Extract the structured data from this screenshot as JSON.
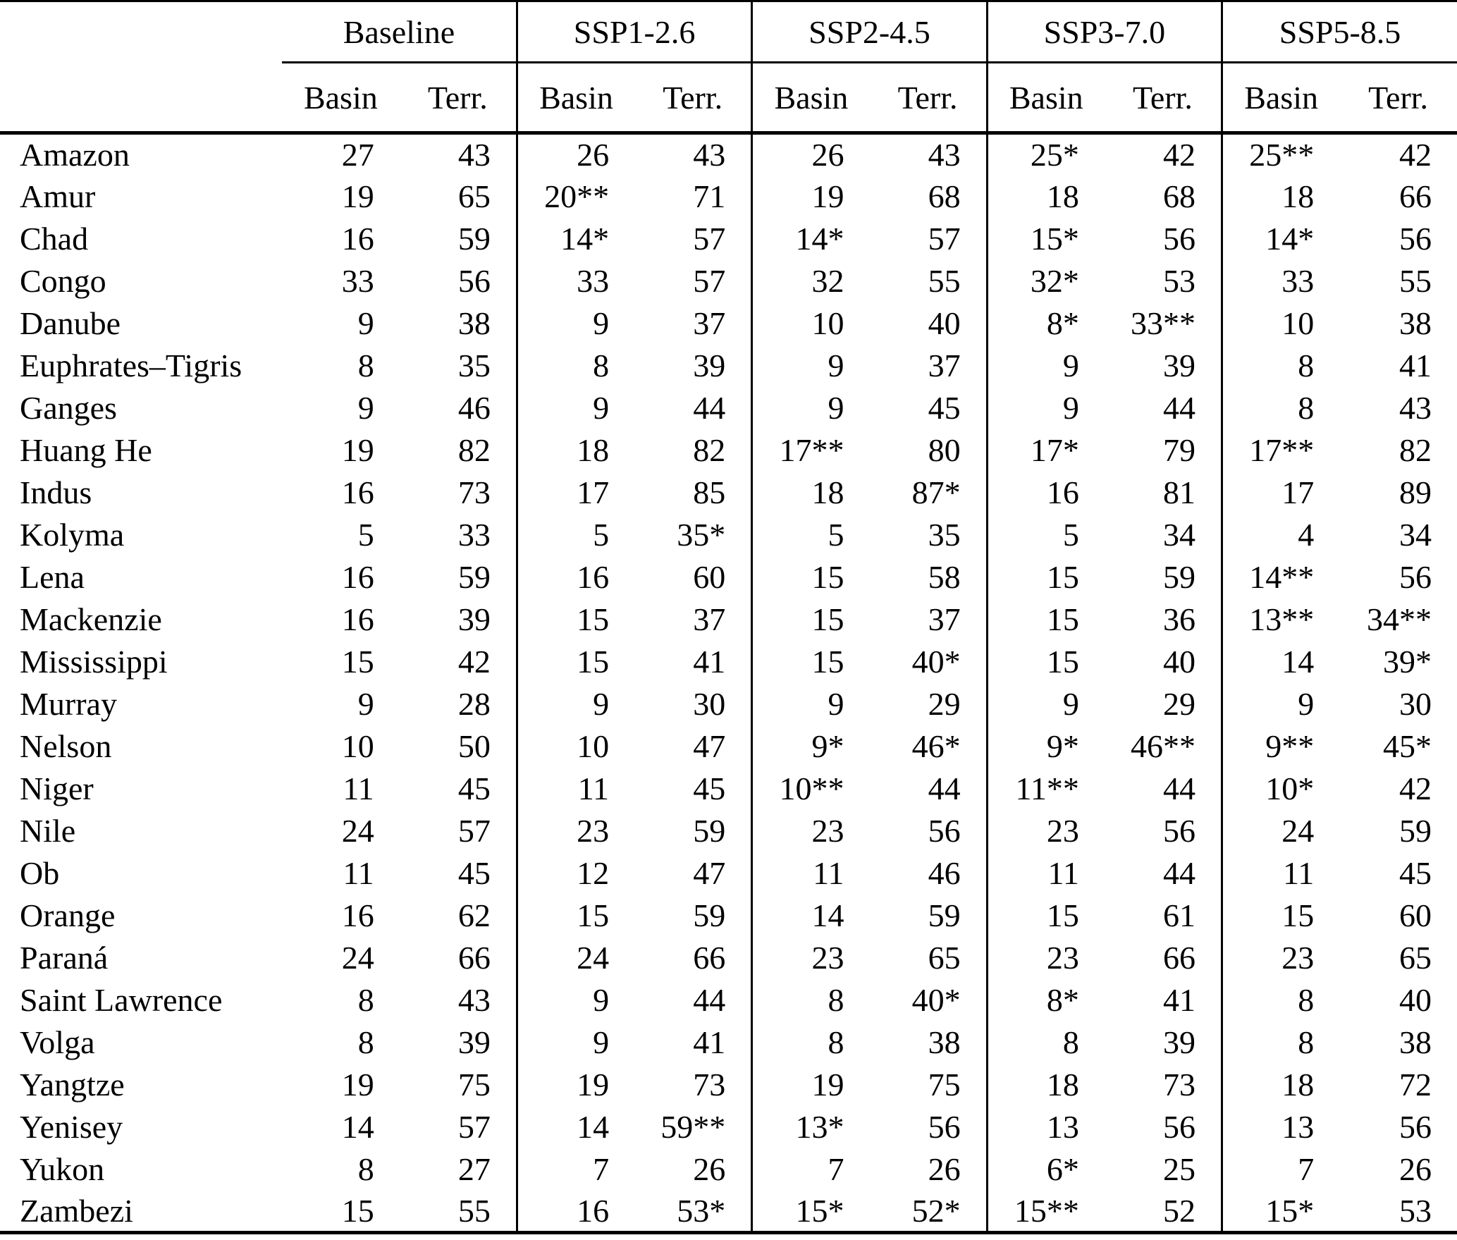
{
  "table": {
    "groups": [
      {
        "label": "Baseline"
      },
      {
        "label": "SSP1-2.6"
      },
      {
        "label": "SSP2-4.5"
      },
      {
        "label": "SSP3-7.0"
      },
      {
        "label": "SSP5-8.5"
      }
    ],
    "subheaders": {
      "basin": "Basin",
      "terr": "Terr."
    },
    "rows": [
      {
        "name": "Amazon",
        "values": [
          "27",
          "43",
          "26",
          "43",
          "26",
          "43",
          "25*",
          "42",
          "25**",
          "42"
        ]
      },
      {
        "name": "Amur",
        "values": [
          "19",
          "65",
          "20**",
          "71",
          "19",
          "68",
          "18",
          "68",
          "18",
          "66"
        ]
      },
      {
        "name": "Chad",
        "values": [
          "16",
          "59",
          "14*",
          "57",
          "14*",
          "57",
          "15*",
          "56",
          "14*",
          "56"
        ]
      },
      {
        "name": "Congo",
        "values": [
          "33",
          "56",
          "33",
          "57",
          "32",
          "55",
          "32*",
          "53",
          "33",
          "55"
        ]
      },
      {
        "name": "Danube",
        "values": [
          "9",
          "38",
          "9",
          "37",
          "10",
          "40",
          "8*",
          "33**",
          "10",
          "38"
        ]
      },
      {
        "name": "Euphrates–Tigris",
        "values": [
          "8",
          "35",
          "8",
          "39",
          "9",
          "37",
          "9",
          "39",
          "8",
          "41"
        ]
      },
      {
        "name": "Ganges",
        "values": [
          "9",
          "46",
          "9",
          "44",
          "9",
          "45",
          "9",
          "44",
          "8",
          "43"
        ]
      },
      {
        "name": "Huang He",
        "values": [
          "19",
          "82",
          "18",
          "82",
          "17**",
          "80",
          "17*",
          "79",
          "17**",
          "82"
        ]
      },
      {
        "name": "Indus",
        "values": [
          "16",
          "73",
          "17",
          "85",
          "18",
          "87*",
          "16",
          "81",
          "17",
          "89"
        ]
      },
      {
        "name": "Kolyma",
        "values": [
          "5",
          "33",
          "5",
          "35*",
          "5",
          "35",
          "5",
          "34",
          "4",
          "34"
        ]
      },
      {
        "name": "Lena",
        "values": [
          "16",
          "59",
          "16",
          "60",
          "15",
          "58",
          "15",
          "59",
          "14**",
          "56"
        ]
      },
      {
        "name": "Mackenzie",
        "values": [
          "16",
          "39",
          "15",
          "37",
          "15",
          "37",
          "15",
          "36",
          "13**",
          "34**"
        ]
      },
      {
        "name": "Mississippi",
        "values": [
          "15",
          "42",
          "15",
          "41",
          "15",
          "40*",
          "15",
          "40",
          "14",
          "39*"
        ]
      },
      {
        "name": "Murray",
        "values": [
          "9",
          "28",
          "9",
          "30",
          "9",
          "29",
          "9",
          "29",
          "9",
          "30"
        ]
      },
      {
        "name": "Nelson",
        "values": [
          "10",
          "50",
          "10",
          "47",
          "9*",
          "46*",
          "9*",
          "46**",
          "9**",
          "45*"
        ]
      },
      {
        "name": "Niger",
        "values": [
          "11",
          "45",
          "11",
          "45",
          "10**",
          "44",
          "11**",
          "44",
          "10*",
          "42"
        ]
      },
      {
        "name": "Nile",
        "values": [
          "24",
          "57",
          "23",
          "59",
          "23",
          "56",
          "23",
          "56",
          "24",
          "59"
        ]
      },
      {
        "name": "Ob",
        "values": [
          "11",
          "45",
          "12",
          "47",
          "11",
          "46",
          "11",
          "44",
          "11",
          "45"
        ]
      },
      {
        "name": "Orange",
        "values": [
          "16",
          "62",
          "15",
          "59",
          "14",
          "59",
          "15",
          "61",
          "15",
          "60"
        ]
      },
      {
        "name": "Paraná",
        "values": [
          "24",
          "66",
          "24",
          "66",
          "23",
          "65",
          "23",
          "66",
          "23",
          "65"
        ]
      },
      {
        "name": "Saint Lawrence",
        "values": [
          "8",
          "43",
          "9",
          "44",
          "8",
          "40*",
          "8*",
          "41",
          "8",
          "40"
        ]
      },
      {
        "name": "Volga",
        "values": [
          "8",
          "39",
          "9",
          "41",
          "8",
          "38",
          "8",
          "39",
          "8",
          "38"
        ]
      },
      {
        "name": "Yangtze",
        "values": [
          "19",
          "75",
          "19",
          "73",
          "19",
          "75",
          "18",
          "73",
          "18",
          "72"
        ]
      },
      {
        "name": "Yenisey",
        "values": [
          "14",
          "57",
          "14",
          "59**",
          "13*",
          "56",
          "13",
          "56",
          "13",
          "56"
        ]
      },
      {
        "name": "Yukon",
        "values": [
          "8",
          "27",
          "7",
          "26",
          "7",
          "26",
          "6*",
          "25",
          "7",
          "26"
        ]
      },
      {
        "name": "Zambezi",
        "values": [
          "15",
          "55",
          "16",
          "53*",
          "15*",
          "52*",
          "15**",
          "52",
          "15*",
          "53"
        ]
      }
    ]
  }
}
